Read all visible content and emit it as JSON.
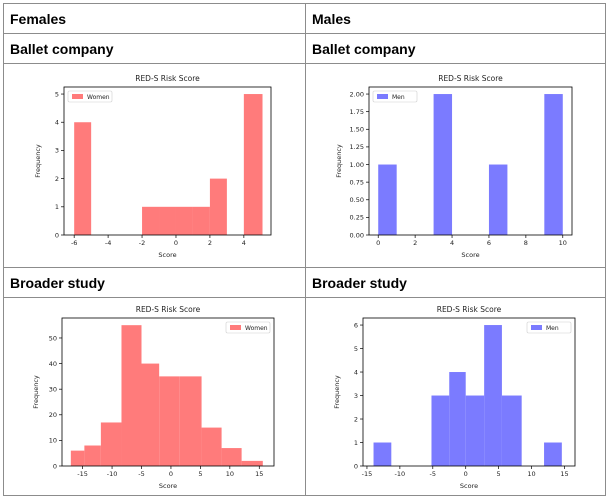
{
  "table": {
    "columns": [
      "Females",
      "Males"
    ],
    "sections": [
      "Ballet company",
      "Ballet company",
      "Broader study",
      "Broader study"
    ]
  },
  "chart_data": [
    {
      "type": "bar",
      "title": "RED-S Risk Score",
      "xlabel": "Score",
      "ylabel": "Frequency",
      "xlim": [
        -6.6,
        5.6
      ],
      "ylim": [
        0,
        5.25
      ],
      "xticks": [
        -6,
        -4,
        -2,
        0,
        2,
        4
      ],
      "yticks": [
        0,
        1,
        2,
        3,
        4,
        5
      ],
      "ytick_labels": [
        "0",
        "1",
        "2",
        "3",
        "4",
        "5"
      ],
      "legend_position": "top-left",
      "grid": false,
      "series": [
        {
          "name": "Women",
          "color": "#ff7b7b",
          "bins": [
            [
              -6,
              -5
            ],
            [
              -5,
              -4
            ],
            [
              -4,
              -3
            ],
            [
              -3,
              -2
            ],
            [
              -2,
              -1
            ],
            [
              -1,
              0
            ],
            [
              0,
              1
            ],
            [
              1,
              2
            ],
            [
              2,
              3
            ],
            [
              3,
              4
            ],
            [
              4,
              5.1
            ]
          ],
          "values": [
            4,
            0,
            0,
            0,
            1,
            1,
            1,
            1,
            2,
            0,
            5
          ]
        }
      ]
    },
    {
      "type": "bar",
      "title": "RED-S Risk Score",
      "xlabel": "Score",
      "ylabel": "Frequency",
      "xlim": [
        -0.5,
        10.5
      ],
      "ylim": [
        0,
        2.1
      ],
      "xticks": [
        0,
        2,
        4,
        6,
        8,
        10
      ],
      "yticks": [
        0,
        0.25,
        0.5,
        0.75,
        1,
        1.25,
        1.5,
        1.75,
        2
      ],
      "ytick_labels": [
        "0.00",
        "0.25",
        "0.50",
        "0.75",
        "1.00",
        "1.25",
        "1.50",
        "1.75",
        "2.00"
      ],
      "legend_position": "top-left",
      "grid": false,
      "series": [
        {
          "name": "Men",
          "color": "#7b7bff",
          "bins": [
            [
              0,
              1
            ],
            [
              1,
              2
            ],
            [
              2,
              3
            ],
            [
              3,
              4
            ],
            [
              4,
              5
            ],
            [
              5,
              6
            ],
            [
              6,
              7
            ],
            [
              7,
              8
            ],
            [
              8,
              9
            ],
            [
              9,
              10
            ]
          ],
          "values": [
            1,
            0,
            0,
            2,
            0,
            0,
            1,
            0,
            0,
            2
          ]
        }
      ]
    },
    {
      "type": "bar",
      "title": "RED-S Risk Score",
      "xlabel": "Score",
      "ylabel": "Frequency",
      "xlim": [
        -18.5,
        17.5
      ],
      "ylim": [
        0,
        57.8
      ],
      "xticks": [
        -15,
        -10,
        -5,
        0,
        5,
        10,
        15
      ],
      "yticks": [
        0,
        10,
        20,
        30,
        40,
        50
      ],
      "ytick_labels": [
        "0",
        "10",
        "20",
        "30",
        "40",
        "50"
      ],
      "legend_position": "top-right",
      "grid": false,
      "series": [
        {
          "name": "Women",
          "color": "#ff7b7b",
          "bins": [
            [
              -17,
              -14.7
            ],
            [
              -14.7,
              -11.9
            ],
            [
              -11.9,
              -8.4
            ],
            [
              -8.4,
              -5
            ],
            [
              -5,
              -2
            ],
            [
              -2,
              1.5
            ],
            [
              1.5,
              5.2
            ],
            [
              5.2,
              8.6
            ],
            [
              8.6,
              12
            ],
            [
              12,
              15.6
            ]
          ],
          "values": [
            6,
            8,
            17,
            55,
            40,
            35,
            35,
            15,
            7,
            2
          ]
        }
      ]
    },
    {
      "type": "bar",
      "title": "RED-S Risk Score",
      "xlabel": "Score",
      "ylabel": "Frequency",
      "xlim": [
        -15.6,
        16.6
      ],
      "ylim": [
        0,
        6.3
      ],
      "xticks": [
        -15,
        -10,
        -5,
        0,
        5,
        10,
        15
      ],
      "yticks": [
        0,
        1,
        2,
        3,
        4,
        5,
        6
      ],
      "ytick_labels": [
        "0",
        "1",
        "2",
        "3",
        "4",
        "5",
        "6"
      ],
      "legend_position": "top-right",
      "grid": false,
      "series": [
        {
          "name": "Men",
          "color": "#7b7bff",
          "bins": [
            [
              -14,
              -11.3
            ],
            [
              -11.3,
              -8.6
            ],
            [
              -8.6,
              -5.2
            ],
            [
              -5.2,
              -2.5
            ],
            [
              -2.5,
              0
            ],
            [
              0,
              2.8
            ],
            [
              2.8,
              5.5
            ],
            [
              5.5,
              8.5
            ],
            [
              8.5,
              11.9
            ],
            [
              11.9,
              14.6
            ]
          ],
          "values": [
            1,
            0,
            0,
            3,
            4,
            3,
            6,
            3,
            0,
            1
          ]
        }
      ]
    }
  ]
}
